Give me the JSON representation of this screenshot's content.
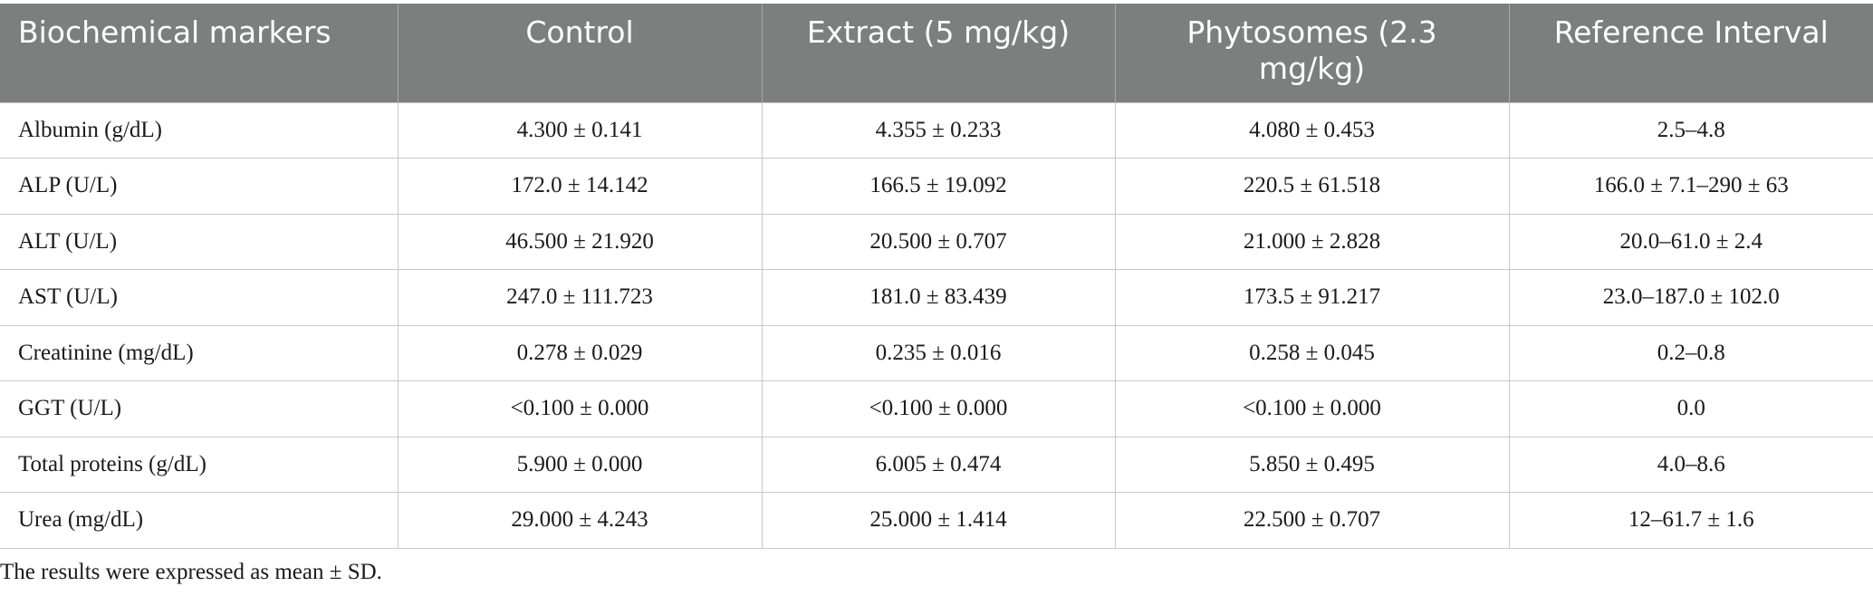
{
  "table": {
    "columns": [
      "Biochemical markers",
      "Control",
      "Extract (5 mg/kg)",
      "Phytosomes (2.3 mg/kg)",
      "Reference Interval"
    ],
    "rows": [
      [
        "Albumin (g/dL)",
        "4.300 ± 0.141",
        "4.355 ± 0.233",
        "4.080 ± 0.453",
        "2.5–4.8"
      ],
      [
        "ALP (U/L)",
        "172.0 ± 14.142",
        "166.5 ± 19.092",
        "220.5 ± 61.518",
        "166.0 ± 7.1–290 ± 63"
      ],
      [
        "ALT (U/L)",
        "46.500 ± 21.920",
        "20.500 ± 0.707",
        "21.000 ± 2.828",
        "20.0–61.0 ± 2.4"
      ],
      [
        "AST (U/L)",
        "247.0 ± 111.723",
        "181.0 ± 83.439",
        "173.5 ± 91.217",
        "23.0–187.0 ± 102.0"
      ],
      [
        "Creatinine (mg/dL)",
        "0.278 ± 0.029",
        "0.235 ± 0.016",
        "0.258 ± 0.045",
        "0.2–0.8"
      ],
      [
        "GGT (U/L)",
        "<0.100 ± 0.000",
        "<0.100 ± 0.000",
        "<0.100 ± 0.000",
        "0.0"
      ],
      [
        "Total proteins (g/dL)",
        "5.900 ± 0.000",
        "6.005 ± 0.474",
        "5.850 ± 0.495",
        "4.0–8.6"
      ],
      [
        "Urea (mg/dL)",
        "29.000 ± 4.243",
        "25.000 ± 1.414",
        "22.500 ± 0.707",
        "12–61.7 ± 1.6"
      ]
    ]
  },
  "note": "The results were expressed as mean ± SD."
}
